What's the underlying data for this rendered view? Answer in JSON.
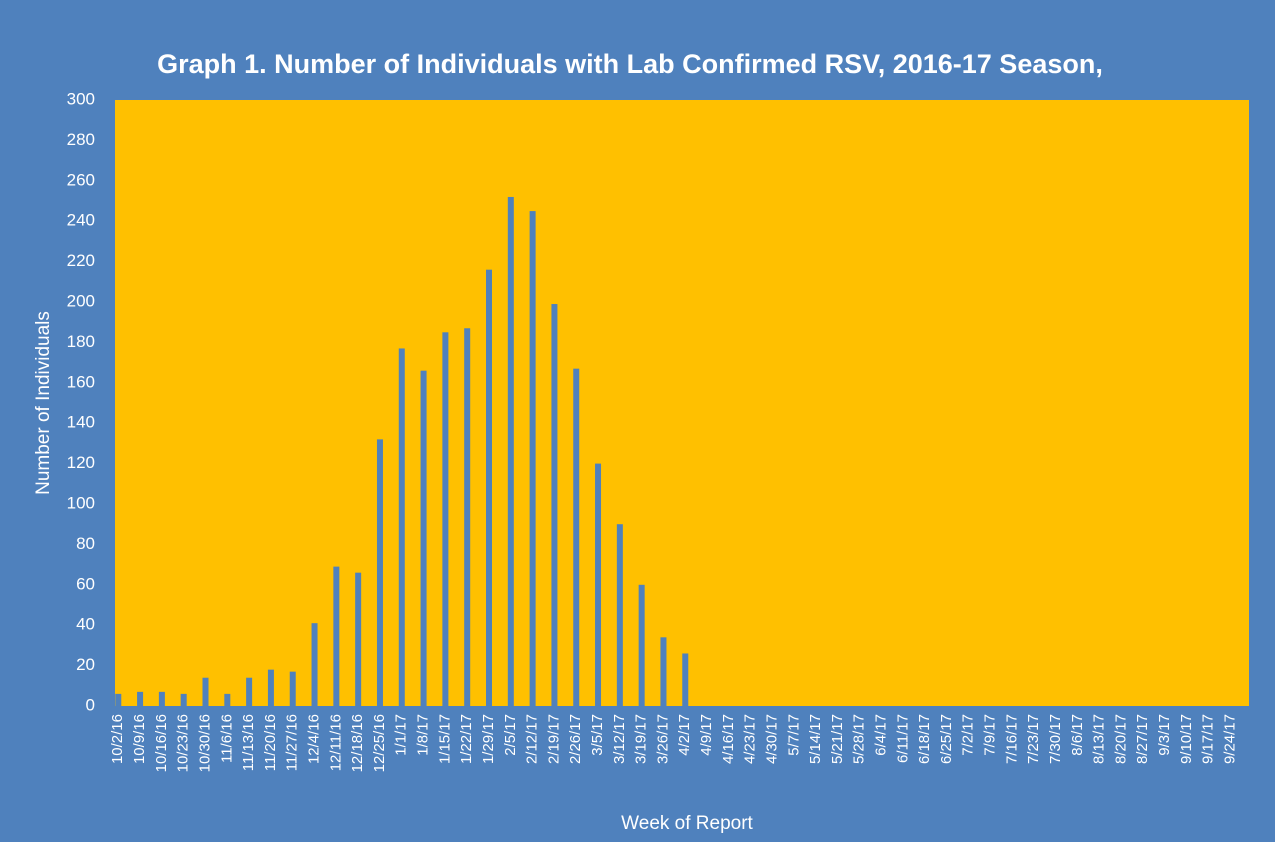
{
  "chart_data": {
    "type": "bar",
    "title": "Graph 1. Number of Individuals with Lab Confirmed RSV, 2016-17 Season,",
    "x_label": "Week of Report",
    "y_label": "Number of Individuals",
    "categories": [
      "10/2/16",
      "10/9/16",
      "10/16/16",
      "10/23/16",
      "10/30/16",
      "11/6/16",
      "11/13/16",
      "11/20/16",
      "11/27/16",
      "12/4/16",
      "12/11/16",
      "12/18/16",
      "12/25/16",
      "1/1/17",
      "1/8/17",
      "1/15/17",
      "1/22/17",
      "1/29/17",
      "2/5/17",
      "2/12/17",
      "2/19/17",
      "2/26/17",
      "3/5/17",
      "3/12/17",
      "3/19/17",
      "3/26/17",
      "4/2/17",
      "4/9/17",
      "4/16/17",
      "4/23/17",
      "4/30/17",
      "5/7/17",
      "5/14/17",
      "5/21/17",
      "5/28/17",
      "6/4/17",
      "6/11/17",
      "6/18/17",
      "6/25/17",
      "7/2/17",
      "7/9/17",
      "7/16/17",
      "7/23/17",
      "7/30/17",
      "8/6/17",
      "8/13/17",
      "8/20/17",
      "8/27/17",
      "9/3/17",
      "9/10/17",
      "9/17/17",
      "9/24/17"
    ],
    "values": [
      6,
      7,
      7,
      6,
      14,
      6,
      14,
      18,
      17,
      41,
      69,
      66,
      132,
      177,
      166,
      185,
      187,
      216,
      252,
      245,
      199,
      167,
      120,
      90,
      60,
      34,
      26,
      0,
      0,
      0,
      0,
      0,
      0,
      0,
      0,
      0,
      0,
      0,
      0,
      0,
      0,
      0,
      0,
      0,
      0,
      0,
      0,
      0,
      0,
      0,
      0,
      0
    ],
    "color": "#4f81bd",
    "plot_background": "#ffc000",
    "background": "#4f81bd",
    "ylim": [
      0,
      300
    ],
    "yticks": [
      0,
      20,
      40,
      60,
      80,
      100,
      120,
      140,
      160,
      180,
      200,
      220,
      240,
      260,
      280,
      300
    ],
    "grid": false
  }
}
